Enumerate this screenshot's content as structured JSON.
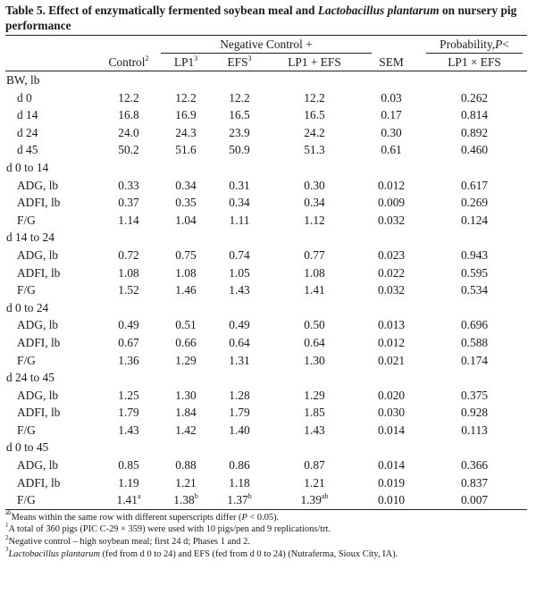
{
  "title": {
    "prefix": "Table 5. Effect of enzymatically fermented soybean meal and ",
    "italic": "Lactobacillus plantarum",
    "suffix": " on nursery pig performance"
  },
  "header": {
    "negative_control_label": "Negative Control +",
    "probability_label": "Probability, ",
    "probability_p": "P",
    "probability_tail": " <",
    "columns": [
      {
        "label": "Control",
        "sup": "2"
      },
      {
        "label": "LP1",
        "sup": "3"
      },
      {
        "label": "EFS",
        "sup": "3"
      },
      {
        "label": "LP1 + EFS",
        "sup": ""
      },
      {
        "label": "SEM",
        "sup": ""
      },
      {
        "label": "LP1 × EFS",
        "sup": ""
      }
    ]
  },
  "groups": [
    {
      "label": "BW, lb",
      "rows": [
        {
          "label": "d 0",
          "values": [
            "12.2",
            "12.2",
            "12.2",
            "12.2",
            "0.03",
            "0.262"
          ],
          "sups": [
            "",
            "",
            "",
            "",
            "",
            ""
          ]
        },
        {
          "label": "d 14",
          "values": [
            "16.8",
            "16.9",
            "16.5",
            "16.5",
            "0.17",
            "0.814"
          ],
          "sups": [
            "",
            "",
            "",
            "",
            "",
            ""
          ]
        },
        {
          "label": "d 24",
          "values": [
            "24.0",
            "24.3",
            "23.9",
            "24.2",
            "0.30",
            "0.892"
          ],
          "sups": [
            "",
            "",
            "",
            "",
            "",
            ""
          ]
        },
        {
          "label": "d 45",
          "values": [
            "50.2",
            "51.6",
            "50.9",
            "51.3",
            "0.61",
            "0.460"
          ],
          "sups": [
            "",
            "",
            "",
            "",
            "",
            ""
          ]
        }
      ]
    },
    {
      "label": "d 0 to 14",
      "rows": [
        {
          "label": "ADG, lb",
          "values": [
            "0.33",
            "0.34",
            "0.31",
            "0.30",
            "0.012",
            "0.617"
          ],
          "sups": [
            "",
            "",
            "",
            "",
            "",
            ""
          ]
        },
        {
          "label": "ADFI, lb",
          "values": [
            "0.37",
            "0.35",
            "0.34",
            "0.34",
            "0.009",
            "0.269"
          ],
          "sups": [
            "",
            "",
            "",
            "",
            "",
            ""
          ]
        },
        {
          "label": "F/G",
          "values": [
            "1.14",
            "1.04",
            "1.11",
            "1.12",
            "0.032",
            "0.124"
          ],
          "sups": [
            "",
            "",
            "",
            "",
            "",
            ""
          ]
        }
      ]
    },
    {
      "label": "d 14 to 24",
      "rows": [
        {
          "label": "ADG, lb",
          "values": [
            "0.72",
            "0.75",
            "0.74",
            "0.77",
            "0.023",
            "0.943"
          ],
          "sups": [
            "",
            "",
            "",
            "",
            "",
            ""
          ]
        },
        {
          "label": "ADFI, lb",
          "values": [
            "1.08",
            "1.08",
            "1.05",
            "1.08",
            "0.022",
            "0.595"
          ],
          "sups": [
            "",
            "",
            "",
            "",
            "",
            ""
          ]
        },
        {
          "label": "F/G",
          "values": [
            "1.52",
            "1.46",
            "1.43",
            "1.41",
            "0.032",
            "0.534"
          ],
          "sups": [
            "",
            "",
            "",
            "",
            "",
            ""
          ]
        }
      ]
    },
    {
      "label": "d 0 to 24",
      "rows": [
        {
          "label": "ADG, lb",
          "values": [
            "0.49",
            "0.51",
            "0.49",
            "0.50",
            "0.013",
            "0.696"
          ],
          "sups": [
            "",
            "",
            "",
            "",
            "",
            ""
          ]
        },
        {
          "label": "ADFI, lb",
          "values": [
            "0.67",
            "0.66",
            "0.64",
            "0.64",
            "0.012",
            "0.588"
          ],
          "sups": [
            "",
            "",
            "",
            "",
            "",
            ""
          ]
        },
        {
          "label": "F/G",
          "values": [
            "1.36",
            "1.29",
            "1.31",
            "1.30",
            "0.021",
            "0.174"
          ],
          "sups": [
            "",
            "",
            "",
            "",
            "",
            ""
          ]
        }
      ]
    },
    {
      "label": "d 24 to 45",
      "rows": [
        {
          "label": "ADG, lb",
          "values": [
            "1.25",
            "1.30",
            "1.28",
            "1.29",
            "0.020",
            "0.375"
          ],
          "sups": [
            "",
            "",
            "",
            "",
            "",
            ""
          ]
        },
        {
          "label": "ADFI, lb",
          "values": [
            "1.79",
            "1.84",
            "1.79",
            "1.85",
            "0.030",
            "0.928"
          ],
          "sups": [
            "",
            "",
            "",
            "",
            "",
            ""
          ]
        },
        {
          "label": "F/G",
          "values": [
            "1.43",
            "1.42",
            "1.40",
            "1.43",
            "0.014",
            "0.113"
          ],
          "sups": [
            "",
            "",
            "",
            "",
            "",
            ""
          ]
        }
      ]
    },
    {
      "label": "d 0 to 45",
      "rows": [
        {
          "label": "ADG, lb",
          "values": [
            "0.85",
            "0.88",
            "0.86",
            "0.87",
            "0.014",
            "0.366"
          ],
          "sups": [
            "",
            "",
            "",
            "",
            "",
            ""
          ]
        },
        {
          "label": "ADFI, lb",
          "values": [
            "1.19",
            "1.21",
            "1.18",
            "1.21",
            "0.019",
            "0.837"
          ],
          "sups": [
            "",
            "",
            "",
            "",
            "",
            ""
          ]
        },
        {
          "label": "F/G",
          "values": [
            "1.41",
            "1.38",
            "1.37",
            "1.39",
            "0.010",
            "0.007"
          ],
          "sups": [
            "a",
            "b",
            "b",
            "ab",
            "",
            ""
          ]
        }
      ]
    }
  ],
  "footnotes": {
    "f1": {
      "sup": "ab",
      "text": "Means within the same row with different superscripts differ (",
      "p": "P",
      "tail": " < 0.05)."
    },
    "f2": {
      "sup": "1",
      "text": "A total of 360 pigs (PIC C-29 × 359) were used with 10 pigs/pen and 9 replications/trt."
    },
    "f3": {
      "sup": "2",
      "text": "Negative control – high soybean meal; first 24 d; Phases 1 and 2."
    },
    "f4": {
      "sup": "3",
      "italic": "Lactobacillus plantarum",
      "text": " (fed from d 0 to 24) and EFS (fed from d 0 to 24) (Nutraferma, Sioux City, IA)."
    }
  }
}
